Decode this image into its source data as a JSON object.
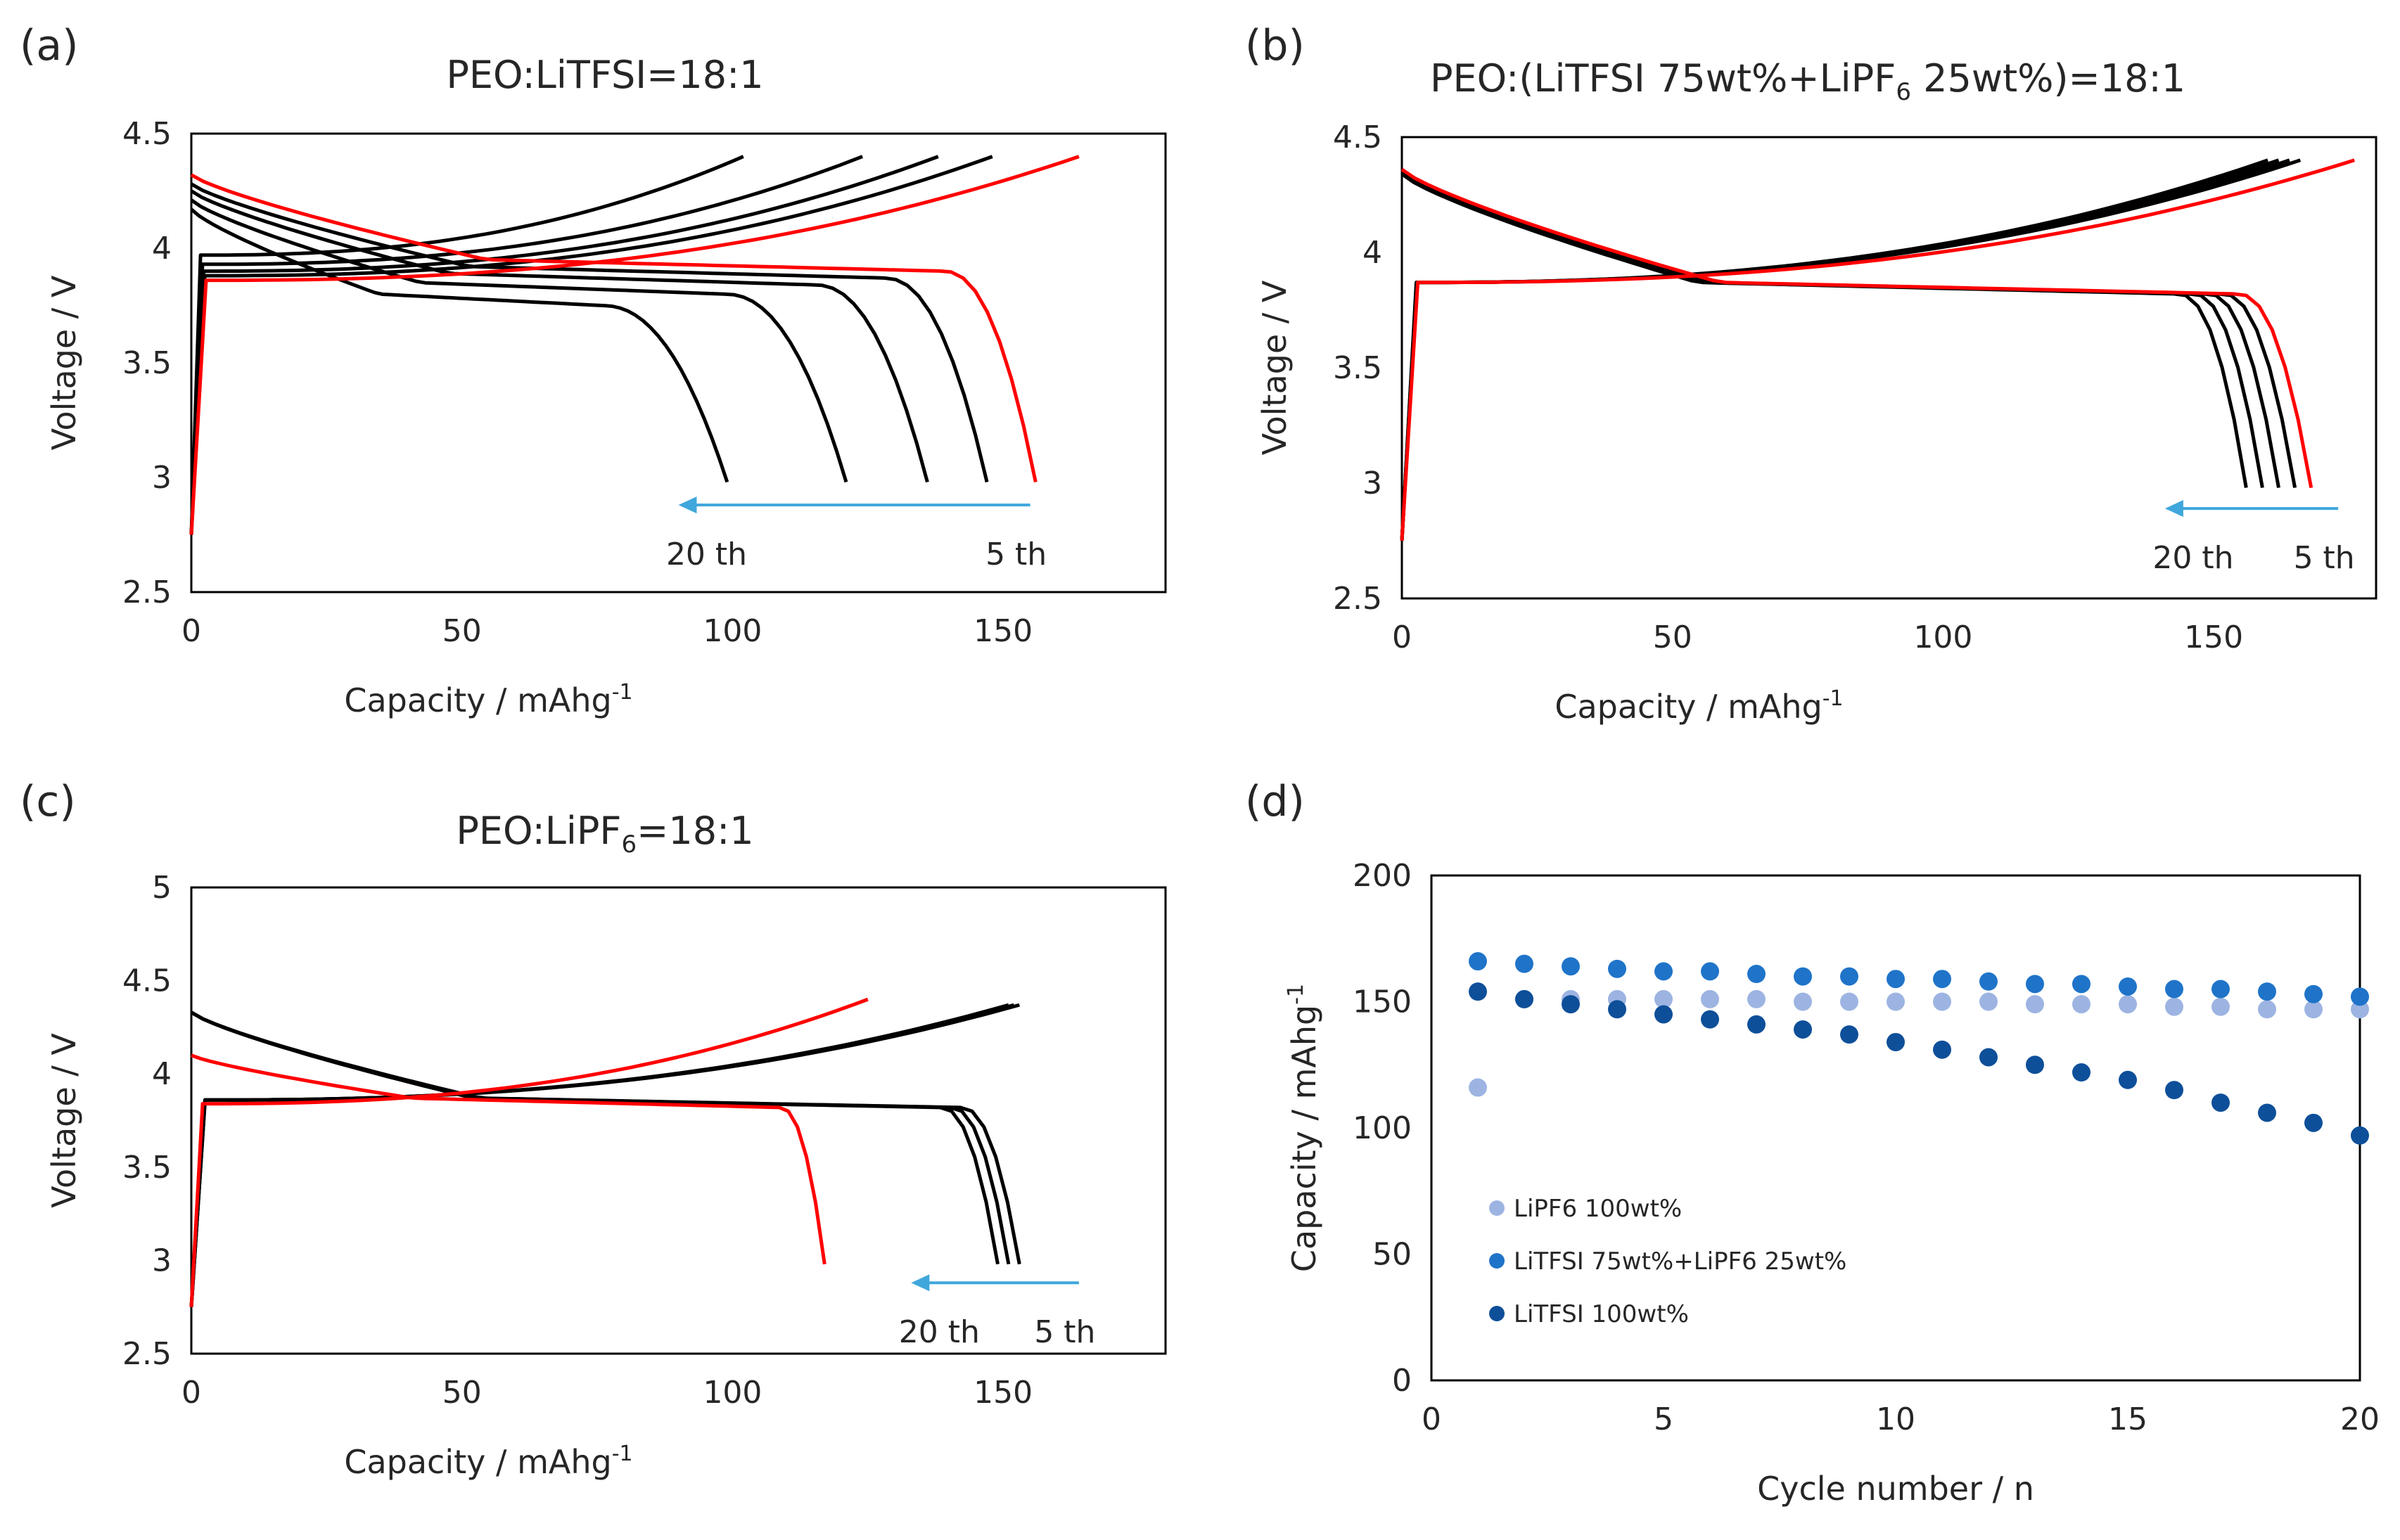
{
  "chart_data": [
    {
      "panel": "(a)",
      "type": "line",
      "title_parts": [
        {
          "text": "PEO:LiTFSI=18:1"
        }
      ],
      "xlabel": "Capacity / mAhg",
      "xlabel_sup": "-1",
      "ylabel": "Voltage / V",
      "xlim": [
        0,
        180
      ],
      "ylim": [
        2.5,
        4.5
      ],
      "xticks": [
        "0",
        "50",
        "100",
        "150"
      ],
      "yticks": [
        "2.5",
        "3",
        "3.5",
        "4",
        "4.5"
      ],
      "charge_curves": [
        {
          "name": "5 th",
          "color": "#ff0000",
          "capacity_end": 164,
          "v_start": 3.86,
          "v_end": 4.4
        },
        {
          "name": "cycle",
          "color": "#000000",
          "capacity_end": 148,
          "v_start": 3.88,
          "v_end": 4.4
        },
        {
          "name": "cycle",
          "color": "#000000",
          "capacity_end": 138,
          "v_start": 3.9,
          "v_end": 4.4
        },
        {
          "name": "cycle",
          "color": "#000000",
          "capacity_end": 124,
          "v_start": 3.93,
          "v_end": 4.4
        },
        {
          "name": "cycle",
          "color": "#000000",
          "capacity_end": 102,
          "v_start": 3.97,
          "v_end": 4.4
        }
      ],
      "discharge_curves": [
        {
          "name": "5 th",
          "color": "#ff0000",
          "capacity_end": 156,
          "v_start": 4.32,
          "v_mid": 3.9
        },
        {
          "name": "cycle",
          "color": "#000000",
          "capacity_end": 147,
          "v_start": 4.28,
          "v_mid": 3.87
        },
        {
          "name": "cycle",
          "color": "#000000",
          "capacity_end": 136,
          "v_start": 4.25,
          "v_mid": 3.84
        },
        {
          "name": "cycle",
          "color": "#000000",
          "capacity_end": 121,
          "v_start": 4.21,
          "v_mid": 3.8
        },
        {
          "name": "20 th",
          "color": "#000000",
          "capacity_end": 99,
          "v_start": 4.17,
          "v_mid": 3.75
        }
      ],
      "arrow": {
        "from": 155,
        "to": 90,
        "voltage": 2.88,
        "color": "#3fa7dc"
      },
      "annotations": {
        "left": "20 th",
        "right": "5 th"
      }
    },
    {
      "panel": "(b)",
      "type": "line",
      "title_parts": [
        {
          "text": "PEO:(LiTFSI 75wt%+LiPF"
        },
        {
          "text": "6",
          "sub": true
        },
        {
          "text": " 25wt%)=18:1"
        }
      ],
      "xlabel": "Capacity / mAhg",
      "xlabel_sup": "-1",
      "ylabel": "Voltage / V",
      "xlim": [
        0,
        180
      ],
      "ylim": [
        2.5,
        4.5
      ],
      "xticks": [
        "0",
        "50",
        "100",
        "150"
      ],
      "yticks": [
        "2.5",
        "3",
        "3.5",
        "4",
        "4.5"
      ],
      "charge_curves": [
        {
          "name": "5 th",
          "color": "#ff0000",
          "capacity_end": 176,
          "v_start": 3.87,
          "v_end": 4.4
        },
        {
          "name": "cycle",
          "color": "#000000",
          "capacity_end": 166,
          "v_start": 3.87,
          "v_end": 4.4
        },
        {
          "name": "cycle",
          "color": "#000000",
          "capacity_end": 164,
          "v_start": 3.87,
          "v_end": 4.4
        },
        {
          "name": "cycle",
          "color": "#000000",
          "capacity_end": 162,
          "v_start": 3.87,
          "v_end": 4.4
        },
        {
          "name": "cycle",
          "color": "#000000",
          "capacity_end": 160,
          "v_start": 3.87,
          "v_end": 4.4
        }
      ],
      "discharge_curves": [
        {
          "name": "5 th",
          "color": "#ff0000",
          "capacity_end": 168,
          "v_start": 4.36,
          "v_mid": 3.82
        },
        {
          "name": "cycle",
          "color": "#000000",
          "capacity_end": 165,
          "v_start": 4.35,
          "v_mid": 3.82
        },
        {
          "name": "cycle",
          "color": "#000000",
          "capacity_end": 162,
          "v_start": 4.35,
          "v_mid": 3.82
        },
        {
          "name": "cycle",
          "color": "#000000",
          "capacity_end": 159,
          "v_start": 4.35,
          "v_mid": 3.82
        },
        {
          "name": "20 th",
          "color": "#000000",
          "capacity_end": 156,
          "v_start": 4.34,
          "v_mid": 3.82
        }
      ],
      "arrow": {
        "from": 173,
        "to": 141,
        "voltage": 2.89,
        "color": "#3fa7dc"
      },
      "annotations": {
        "left": "20 th",
        "right": "5 th"
      }
    },
    {
      "panel": "(c)",
      "type": "line",
      "title_parts": [
        {
          "text": "PEO:LiPF"
        },
        {
          "text": "6",
          "sub": true
        },
        {
          "text": "=18:1"
        }
      ],
      "xlabel": "Capacity / mAhg",
      "xlabel_sup": "-1",
      "ylabel": "Voltage / V",
      "xlim": [
        0,
        180
      ],
      "ylim": [
        2.5,
        5
      ],
      "xticks": [
        "0",
        "50",
        "100",
        "150"
      ],
      "yticks": [
        "2.5",
        "3",
        "3.5",
        "4",
        "4.5",
        "5"
      ],
      "charge_curves": [
        {
          "name": "5 th",
          "color": "#ff0000",
          "capacity_end": 125,
          "v_start": 3.84,
          "v_end": 4.4
        },
        {
          "name": "cycle",
          "color": "#000000",
          "capacity_end": 153,
          "v_start": 3.86,
          "v_end": 4.37
        },
        {
          "name": "cycle",
          "color": "#000000",
          "capacity_end": 152,
          "v_start": 3.86,
          "v_end": 4.37
        },
        {
          "name": "cycle",
          "color": "#000000",
          "capacity_end": 151,
          "v_start": 3.86,
          "v_end": 4.37
        }
      ],
      "discharge_curves": [
        {
          "name": "5 th",
          "color": "#ff0000",
          "capacity_end": 117,
          "v_start": 4.1,
          "v_mid": 3.82
        },
        {
          "name": "cycle",
          "color": "#000000",
          "capacity_end": 153,
          "v_start": 4.33,
          "v_mid": 3.82
        },
        {
          "name": "cycle",
          "color": "#000000",
          "capacity_end": 151,
          "v_start": 4.33,
          "v_mid": 3.82
        },
        {
          "name": "20 th",
          "color": "#000000",
          "capacity_end": 149,
          "v_start": 4.33,
          "v_mid": 3.82
        }
      ],
      "arrow": {
        "from": 164,
        "to": 133,
        "voltage": 2.88,
        "color": "#3fa7dc"
      },
      "annotations": {
        "left": "20 th",
        "right": "5 th"
      }
    },
    {
      "panel": "(d)",
      "type": "scatter",
      "xlabel": "Cycle number / n",
      "ylabel": "Capacity / mAhg",
      "ylabel_sup": "-1",
      "xlim": [
        0,
        20
      ],
      "ylim": [
        0,
        200
      ],
      "xticks": [
        "0",
        "5",
        "10",
        "15",
        "20"
      ],
      "yticks": [
        "0",
        "50",
        "100",
        "150",
        "200"
      ],
      "x": [
        1,
        2,
        3,
        4,
        5,
        6,
        7,
        8,
        9,
        10,
        11,
        12,
        13,
        14,
        15,
        16,
        17,
        18,
        19,
        20
      ],
      "series": [
        {
          "name": "LiPF6 100wt%",
          "color": "#9db4e2",
          "values": [
            116,
            151,
            151,
            151,
            151,
            151,
            151,
            150,
            150,
            150,
            150,
            150,
            149,
            149,
            149,
            148,
            148,
            147,
            147,
            147
          ]
        },
        {
          "name": "LiTFSI 75wt%+LiPF6 25wt%",
          "color": "#1f74c9",
          "values": [
            166,
            165,
            164,
            163,
            162,
            162,
            161,
            160,
            160,
            159,
            159,
            158,
            157,
            157,
            156,
            155,
            155,
            154,
            153,
            152
          ]
        },
        {
          "name": "LiTFSI 100wt%",
          "color": "#0e4f99",
          "values": [
            154,
            151,
            149,
            147,
            145,
            143,
            141,
            139,
            137,
            134,
            131,
            128,
            125,
            122,
            119,
            115,
            110,
            106,
            102,
            97
          ]
        }
      ]
    }
  ]
}
